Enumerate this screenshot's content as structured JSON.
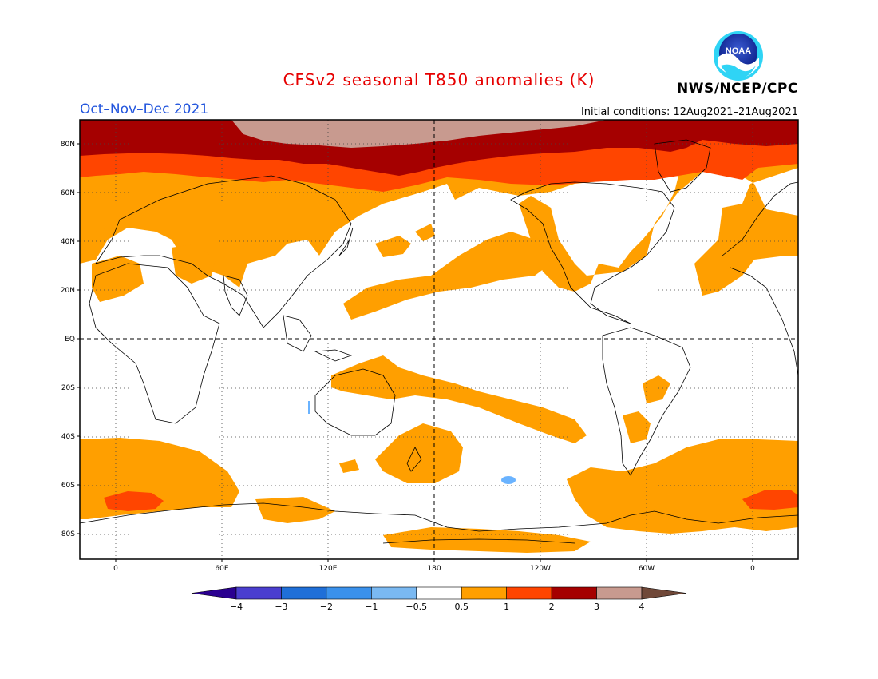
{
  "header": {
    "title": "CFSv2 seasonal T850 anomalies (K)",
    "period": "Oct–Nov–Dec 2021",
    "initial_conditions": "Initial conditions: 12Aug2021–21Aug2021",
    "agency": "NWS/NCEP/CPC",
    "logo_text": "NOAA"
  },
  "colors": {
    "title": "#e60000",
    "period": "#2255dd",
    "land_outline": "#000000",
    "anom_0_5_1": "#ff9f00",
    "anom_1_2": "#ff4500",
    "anom_2_3": "#a50000",
    "anom_3_4": "#c89a8f",
    "anom_neg_0_5_1": "#6ab3ff"
  },
  "map": {
    "lat_labels": [
      "80N",
      "60N",
      "40N",
      "20N",
      "EQ",
      "20S",
      "40S",
      "60S",
      "80S"
    ],
    "lon_labels": [
      "0",
      "60E",
      "120E",
      "180",
      "120W",
      "60W",
      "0"
    ]
  },
  "legend": {
    "unit": "K",
    "bins": [
      {
        "color": "#2a0090",
        "range": "< -4"
      },
      {
        "color": "#4a3ecf",
        "range": "-4 to -3"
      },
      {
        "color": "#1f6fd8",
        "range": "-3 to -2"
      },
      {
        "color": "#3a91ec",
        "range": "-2 to -1"
      },
      {
        "color": "#7ab9f2",
        "range": "-1 to -0.5"
      },
      {
        "color": "#ffffff",
        "range": "-0.5 to 0.5"
      },
      {
        "color": "#ff9f00",
        "range": "0.5 to 1"
      },
      {
        "color": "#ff4500",
        "range": "1 to 2"
      },
      {
        "color": "#a50000",
        "range": "2 to 3"
      },
      {
        "color": "#c89a8f",
        "range": "3 to 4"
      },
      {
        "color": "#704838",
        "range": "> 4"
      }
    ],
    "tick_labels": [
      "−4",
      "−3",
      "−2",
      "−1",
      "−0.5",
      "0.5",
      "1",
      "2",
      "3",
      "4"
    ]
  }
}
